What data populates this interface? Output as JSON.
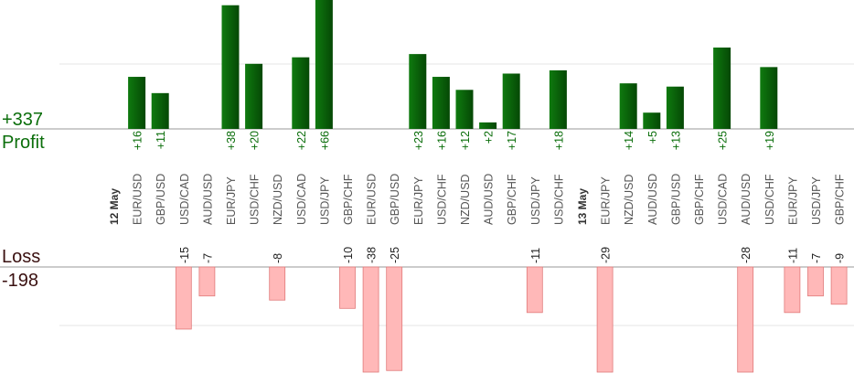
{
  "summary": {
    "profit_total": "+337",
    "profit_label": "Profit",
    "loss_label": "Loss",
    "loss_total": "-198"
  },
  "colors": {
    "profit_bar_dark": "#054805",
    "profit_bar_light": "#0f7a0f",
    "profit_text": "#0b6e0b",
    "loss_bar": "#ffb8b8",
    "loss_bar_border": "#e07a7a",
    "loss_text": "#222222",
    "axis": "#999999",
    "grid": "#e6e6e6",
    "category_text": "#555555",
    "date_text": "#333333"
  },
  "chart_data": {
    "type": "bar",
    "description_units": "pips",
    "categories": [
      "12 May",
      "EUR/USD",
      "GBP/USD",
      "USD/CAD",
      "AUD/USD",
      "EUR/JPY",
      "USD/CHF",
      "NZD/USD",
      "USD/CAD",
      "USD/JPY",
      "GBP/CHF",
      "EUR/USD",
      "GBP/USD",
      "EUR/JPY",
      "USD/CHF",
      "NZD/USD",
      "AUD/USD",
      "GBP/CHF",
      "USD/JPY",
      "USD/CHF",
      "13 May",
      "EUR/JPY",
      "NZD/USD",
      "AUD/USD",
      "GBP/USD",
      "GBP/CHF",
      "USD/CAD",
      "AUD/USD",
      "USD/CHF",
      "EUR/JPY",
      "USD/JPY",
      "GBP/CHF"
    ],
    "date_markers": [
      "12 May",
      "13 May"
    ],
    "series": [
      {
        "name": "Profit",
        "values": [
          null,
          16,
          11,
          null,
          null,
          38,
          20,
          null,
          22,
          66,
          null,
          null,
          null,
          23,
          16,
          12,
          2,
          17,
          null,
          18,
          null,
          null,
          14,
          5,
          13,
          null,
          25,
          null,
          19,
          null,
          null,
          null
        ],
        "labels": [
          null,
          "+16",
          "+11",
          null,
          null,
          "+38",
          "+20",
          null,
          "+22",
          "+66",
          null,
          null,
          null,
          "+23",
          "+16",
          "+12",
          "+2",
          "+17",
          null,
          "+18",
          null,
          null,
          "+14",
          "+5",
          "+13",
          null,
          "+25",
          null,
          "+19",
          null,
          null,
          null
        ]
      },
      {
        "name": "Loss",
        "values": [
          null,
          null,
          null,
          -15,
          -7,
          null,
          null,
          -8,
          null,
          null,
          -10,
          -38,
          -25,
          null,
          null,
          null,
          null,
          null,
          -11,
          null,
          null,
          -29,
          null,
          null,
          null,
          null,
          null,
          -28,
          null,
          -11,
          -7,
          -9
        ],
        "labels": [
          null,
          null,
          null,
          "-15",
          "-7",
          null,
          null,
          "-8",
          null,
          null,
          "-10",
          "-38",
          "-25",
          null,
          null,
          null,
          null,
          null,
          "-11",
          null,
          null,
          "-29",
          null,
          null,
          null,
          null,
          null,
          "-28",
          null,
          "-11",
          "-7",
          "-9"
        ]
      }
    ],
    "profit_axis_visible_max": 20,
    "loss_axis_visible_min": -16,
    "grid": true
  }
}
